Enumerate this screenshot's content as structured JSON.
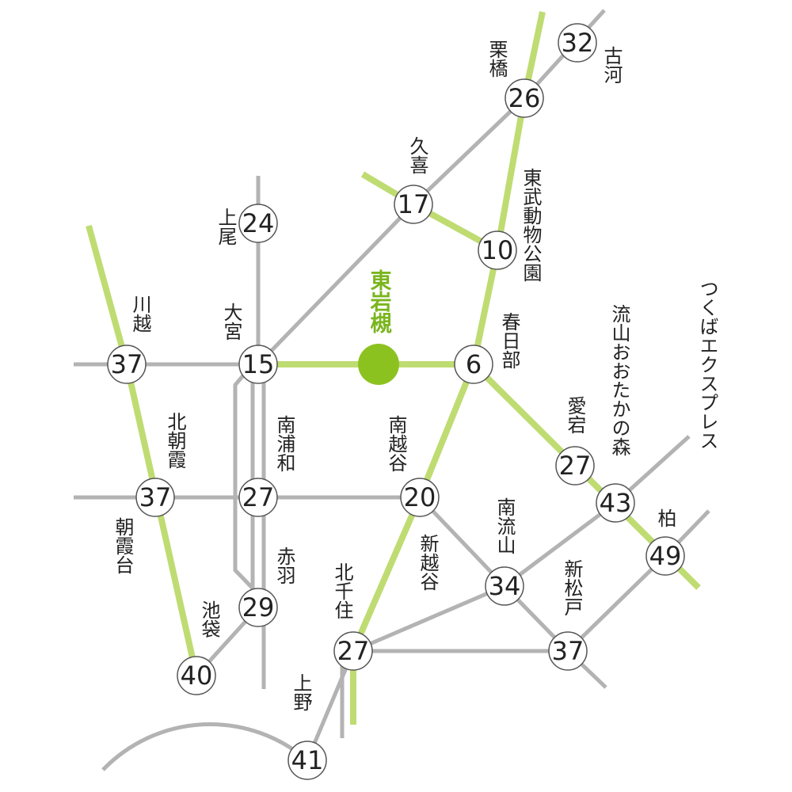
{
  "colors": {
    "background": "#ffffff",
    "line_gray": "#b3b3b3",
    "line_green": "#bfdc72",
    "origin_green": "#8cc220",
    "origin_text": "#7ab51e",
    "node_fill": "#ffffff",
    "node_stroke": "#555555",
    "text": "#222222"
  },
  "origin": {
    "name": "東岩槻"
  },
  "stations": [
    {
      "id": "koga",
      "name": "古河",
      "minutes": "32"
    },
    {
      "id": "kurihashi",
      "name": "栗橋",
      "minutes": "26"
    },
    {
      "id": "kuki",
      "name": "久喜",
      "minutes": "17"
    },
    {
      "id": "tobu-dobutsu-koen",
      "name": "東武動物公園",
      "minutes": "10"
    },
    {
      "id": "ageo",
      "name": "上尾",
      "minutes": "24"
    },
    {
      "id": "omiya",
      "name": "大宮",
      "minutes": "15"
    },
    {
      "id": "kawagoe",
      "name": "川越",
      "minutes": "37"
    },
    {
      "id": "kasukabe",
      "name": "春日部",
      "minutes": "6"
    },
    {
      "id": "kita-asaka",
      "name": "北朝霞",
      "minutes": "37"
    },
    {
      "id": "asakadai",
      "name": "朝霞台",
      "minutes": ""
    },
    {
      "id": "minami-urawa",
      "name": "南浦和",
      "minutes": "27"
    },
    {
      "id": "minami-koshigaya",
      "name": "南越谷",
      "minutes": "20"
    },
    {
      "id": "shin-koshigaya",
      "name": "新越谷",
      "minutes": ""
    },
    {
      "id": "fujinomiya",
      "name": "愛宕",
      "minutes": "27"
    },
    {
      "id": "nagareyama-otakanomori",
      "name": "流山おおたかの森",
      "minutes": "43"
    },
    {
      "id": "tsukuba-express",
      "name": "つくばエクスプレス",
      "minutes": ""
    },
    {
      "id": "kashiwa",
      "name": "柏",
      "minutes": "49"
    },
    {
      "id": "minami-nagareyama",
      "name": "南流山",
      "minutes": "34"
    },
    {
      "id": "shin-matsudo",
      "name": "新松戸",
      "minutes": "37"
    },
    {
      "id": "akabane",
      "name": "赤羽",
      "minutes": "29"
    },
    {
      "id": "ikebukuro",
      "name": "池袋",
      "minutes": "40"
    },
    {
      "id": "kita-senju",
      "name": "北千住",
      "minutes": "27"
    },
    {
      "id": "ueno",
      "name": "上野",
      "minutes": "41"
    }
  ]
}
